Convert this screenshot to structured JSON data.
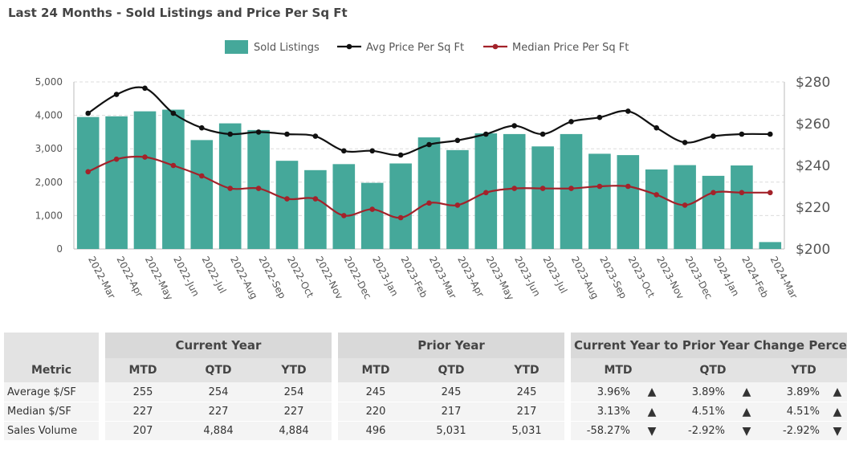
{
  "title": "Last 24 Months - Sold Listings and Price Per Sq Ft",
  "colors": {
    "bars": "#45a89a",
    "avg": "#111111",
    "median": "#a3222a",
    "up": "#5cb85c",
    "down": "#d9534f"
  },
  "chart_data": {
    "type": "bar+line",
    "title": "Last 24 Months - Sold Listings and Price Per Sq Ft",
    "legend_position": "top-center",
    "categories": [
      "2022-Mar",
      "2022-Apr",
      "2022-May",
      "2022-Jun",
      "2022-Jul",
      "2022-Aug",
      "2022-Sep",
      "2022-Oct",
      "2022-Nov",
      "2022-Dec",
      "2023-Jan",
      "2023-Feb",
      "2023-Mar",
      "2023-Apr",
      "2023-May",
      "2023-Jun",
      "2023-Jul",
      "2023-Aug",
      "2023-Sep",
      "2023-Oct",
      "2023-Nov",
      "2023-Dec",
      "2024-Jan",
      "2024-Feb",
      "2024-Mar"
    ],
    "series": [
      {
        "name": "Sold Listings",
        "type": "bar",
        "axis": "left",
        "values": [
          3950,
          3970,
          4120,
          4170,
          3260,
          3760,
          3560,
          2640,
          2360,
          2540,
          1980,
          2560,
          3340,
          2960,
          3460,
          3440,
          3070,
          3440,
          2850,
          2810,
          2380,
          2510,
          2190,
          2500,
          207
        ]
      },
      {
        "name": "Avg Price Per Sq Ft",
        "type": "line",
        "axis": "right",
        "values": [
          265,
          274,
          277,
          265,
          258,
          255,
          256,
          255,
          254,
          247,
          247,
          245,
          250,
          252,
          255,
          259,
          255,
          261,
          263,
          266,
          258,
          251,
          254,
          255,
          255
        ]
      },
      {
        "name": "Median Price Per Sq Ft",
        "type": "line",
        "axis": "right",
        "values": [
          237,
          243,
          244,
          240,
          235,
          229,
          229,
          224,
          224,
          216,
          219,
          215,
          222,
          221,
          227,
          229,
          229,
          229,
          230,
          230,
          226,
          221,
          227,
          227,
          227
        ]
      }
    ],
    "left_axis": {
      "ylim": [
        0,
        5000
      ],
      "ticks": [
        "0",
        "1,000",
        "2,000",
        "3,000",
        "4,000",
        "5,000"
      ],
      "tick_values": [
        0,
        1000,
        2000,
        3000,
        4000,
        5000
      ]
    },
    "right_axis": {
      "ylim": [
        200,
        280
      ],
      "ticks": [
        "$200",
        "$220",
        "$240",
        "$260",
        "$280"
      ],
      "tick_values": [
        200,
        220,
        240,
        260,
        280
      ]
    },
    "grid": true
  },
  "table": {
    "groups": {
      "current": "Current Year",
      "prior": "Prior Year",
      "change": "Current Year to Prior Year Change Percent"
    },
    "headers": {
      "metric": "Metric",
      "mtd": "MTD",
      "qtd": "QTD",
      "ytd": "YTD"
    },
    "rows": [
      {
        "metric": "Average $/SF",
        "cur": [
          "255",
          "254",
          "254"
        ],
        "prior": [
          "245",
          "245",
          "245"
        ],
        "chg": [
          {
            "v": "3.96%",
            "d": "up"
          },
          {
            "v": "3.89%",
            "d": "up"
          },
          {
            "v": "3.89%",
            "d": "up"
          }
        ]
      },
      {
        "metric": "Median $/SF",
        "cur": [
          "227",
          "227",
          "227"
        ],
        "prior": [
          "220",
          "217",
          "217"
        ],
        "chg": [
          {
            "v": "3.13%",
            "d": "up"
          },
          {
            "v": "4.51%",
            "d": "up"
          },
          {
            "v": "4.51%",
            "d": "up"
          }
        ]
      },
      {
        "metric": "Sales Volume",
        "cur": [
          "207",
          "4,884",
          "4,884"
        ],
        "prior": [
          "496",
          "5,031",
          "5,031"
        ],
        "chg": [
          {
            "v": "-58.27%",
            "d": "down"
          },
          {
            "v": "-2.92%",
            "d": "down"
          },
          {
            "v": "-2.92%",
            "d": "down"
          }
        ]
      }
    ]
  }
}
